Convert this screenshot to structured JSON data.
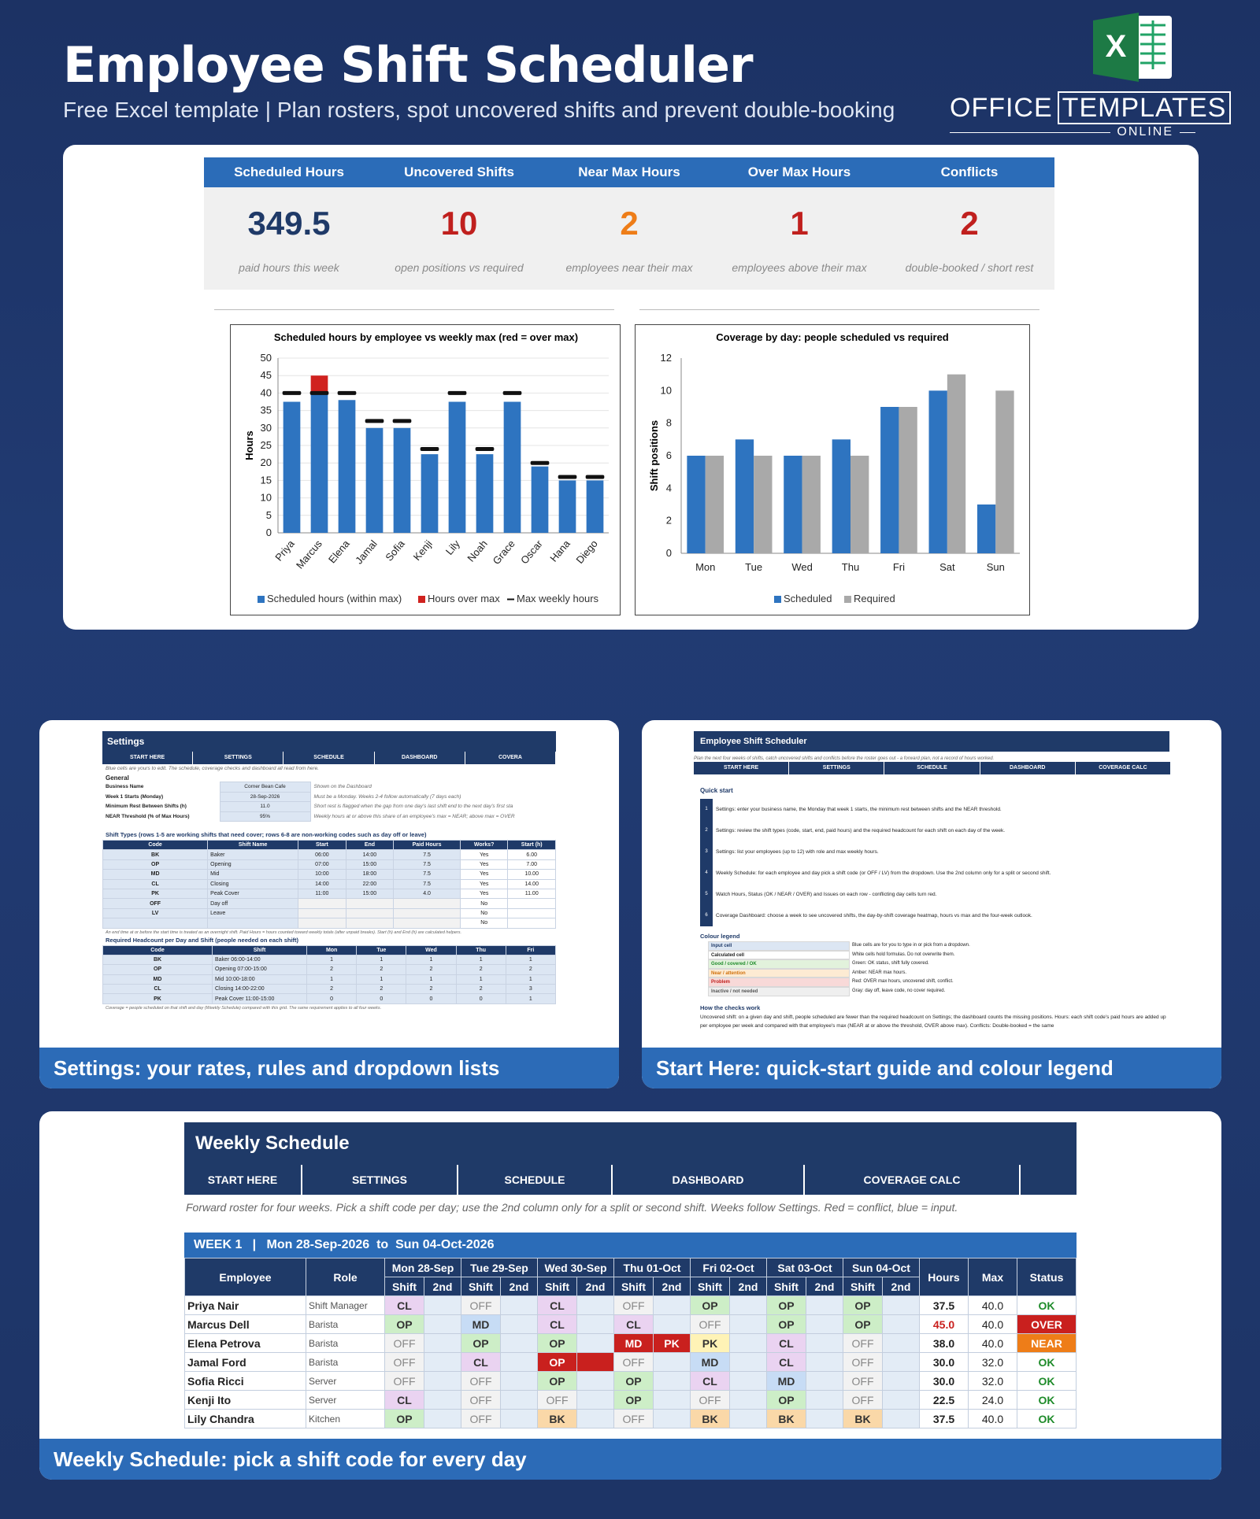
{
  "header": {
    "title": "Employee Shift Scheduler",
    "subtitle": "Free Excel template  |  Plan rosters, spot uncovered shifts and prevent double-booking",
    "logo_letter": "X",
    "brand_main": "OFFICE",
    "brand_box": "TEMPLATES",
    "brand_sub": "ONLINE"
  },
  "kpis": [
    {
      "label": "Scheduled Hours",
      "value": "349.5",
      "note": "paid hours this week",
      "color": "#1f3a68"
    },
    {
      "label": "Uncovered Shifts",
      "value": "10",
      "note": "open positions vs required",
      "color": "#c0201e"
    },
    {
      "label": "Near Max Hours",
      "value": "2",
      "note": "employees near their max",
      "color": "#ee7d18"
    },
    {
      "label": "Over Max Hours",
      "value": "1",
      "note": "employees above their max",
      "color": "#c0201e"
    },
    {
      "label": "Conflicts",
      "value": "2",
      "note": "double-booked / short rest",
      "color": "#c0201e"
    }
  ],
  "chart_data": [
    {
      "type": "bar",
      "title": "Scheduled hours by employee vs weekly max (red = over max)",
      "ylabel": "Hours",
      "ylim": [
        0,
        50
      ],
      "yticks": [
        0,
        5,
        10,
        15,
        20,
        25,
        30,
        35,
        40,
        45,
        50
      ],
      "categories": [
        "Priya",
        "Marcus",
        "Elena",
        "Jamal",
        "Sofia",
        "Kenji",
        "Lily",
        "Noah",
        "Grace",
        "Oscar",
        "Hana",
        "Diego"
      ],
      "series": [
        {
          "name": "Scheduled hours (within max)",
          "values": [
            37.5,
            40,
            38,
            30,
            30,
            22.5,
            37.5,
            22.5,
            37.5,
            19,
            15,
            15
          ],
          "color": "#2e74c0"
        },
        {
          "name": "Hours over max",
          "values": [
            0,
            5,
            0,
            0,
            0,
            0,
            0,
            0,
            0,
            0,
            0,
            0
          ],
          "color": "#d0221f"
        },
        {
          "name": "Max weekly hours",
          "values": [
            40,
            40,
            40,
            32,
            32,
            24,
            40,
            24,
            40,
            20,
            16,
            16
          ],
          "color": "#111111"
        }
      ]
    },
    {
      "type": "bar",
      "title": "Coverage by day: people scheduled vs required",
      "ylabel": "Shift positions",
      "ylim": [
        0,
        12
      ],
      "yticks": [
        0,
        2,
        4,
        6,
        8,
        10,
        12
      ],
      "categories": [
        "Mon",
        "Tue",
        "Wed",
        "Thu",
        "Fri",
        "Sat",
        "Sun"
      ],
      "series": [
        {
          "name": "Scheduled",
          "values": [
            6,
            7,
            6,
            7,
            9,
            10,
            3
          ],
          "color": "#2e74c0"
        },
        {
          "name": "Required",
          "values": [
            6,
            6,
            6,
            6,
            9,
            11,
            10
          ],
          "color": "#a9a9a9"
        }
      ]
    }
  ],
  "settings_shot": {
    "caption": "Settings: your rates, rules and dropdown lists",
    "title": "Settings",
    "nav": [
      "START HERE",
      "SETTINGS",
      "SCHEDULE",
      "DASHBOARD",
      "COVERA"
    ],
    "intro": "Blue cells are yours to edit. The schedule, coverage checks and dashboard all read from here.",
    "general_h": "General",
    "general": [
      [
        "Business Name",
        "Corner Bean Cafe",
        "Shown on the Dashboard"
      ],
      [
        "Week 1 Starts (Monday)",
        "28-Sep-2026",
        "Must be a Monday. Weeks 2-4 follow automatically (7 days each)"
      ],
      [
        "Minimum Rest Between Shifts (h)",
        "11.0",
        "Short rest is flagged when the gap from one day's last shift end to the next day's first sta"
      ],
      [
        "NEAR Threshold (% of Max Hours)",
        "95%",
        "Weekly hours at or above this share of an employee's max = NEAR; above max = OVER"
      ]
    ],
    "types_h": "Shift Types (rows 1-5 are working shifts that need cover; rows 6-8 are non-working codes such as day off or leave)",
    "types_cols": [
      "Code",
      "Shift Name",
      "Start",
      "End",
      "Paid Hours",
      "Works?",
      "Start (h)"
    ],
    "types": [
      [
        "BK",
        "Baker",
        "06:00",
        "14:00",
        "7.5",
        "Yes",
        "6.00"
      ],
      [
        "OP",
        "Opening",
        "07:00",
        "15:00",
        "7.5",
        "Yes",
        "7.00"
      ],
      [
        "MD",
        "Mid",
        "10:00",
        "18:00",
        "7.5",
        "Yes",
        "10.00"
      ],
      [
        "CL",
        "Closing",
        "14:00",
        "22:00",
        "7.5",
        "Yes",
        "14.00"
      ],
      [
        "PK",
        "Peak Cover",
        "11:00",
        "15:00",
        "4.0",
        "Yes",
        "11.00"
      ],
      [
        "OFF",
        "Day off",
        "",
        "",
        "",
        "No",
        ""
      ],
      [
        "LV",
        "Leave",
        "",
        "",
        "",
        "No",
        ""
      ],
      [
        "",
        "",
        "",
        "",
        "",
        "No",
        ""
      ]
    ],
    "types_note": "An end time at or before the start time is treated as an overnight shift. Paid Hours = hours counted toward weekly totals (after unpaid breaks). Start (h) and End (h) are calculated helpers.",
    "head_h": "Required Headcount per Day and Shift (people needed on each shift)",
    "head_cols": [
      "Code",
      "Shift",
      "Mon",
      "Tue",
      "Wed",
      "Thu",
      "Fri"
    ],
    "head": [
      [
        "BK",
        "Baker 06:00-14:00",
        "1",
        "1",
        "1",
        "1",
        "1"
      ],
      [
        "OP",
        "Opening 07:00-15:00",
        "2",
        "2",
        "2",
        "2",
        "2"
      ],
      [
        "MD",
        "Mid 10:00-18:00",
        "1",
        "1",
        "1",
        "1",
        "1"
      ],
      [
        "CL",
        "Closing 14:00-22:00",
        "2",
        "2",
        "2",
        "2",
        "3"
      ],
      [
        "PK",
        "Peak Cover 11:00-15:00",
        "0",
        "0",
        "0",
        "0",
        "1"
      ]
    ],
    "head_note": "Coverage = people scheduled on that shift and day (Weekly Schedule) compared with this grid. The same requirement applies to all four weeks."
  },
  "start_shot": {
    "caption": "Start Here: quick-start guide and colour legend",
    "title": "Employee Shift Scheduler",
    "intro": "Plan the next four weeks of shifts, catch uncovered shifts and conflicts before the roster goes out - a forward plan, not a record of hours worked.",
    "nav": [
      "START HERE",
      "SETTINGS",
      "SCHEDULE",
      "DASHBOARD",
      "COVERAGE CALC"
    ],
    "qs_h": "Quick start",
    "steps": [
      "Settings: enter your business name, the Monday that week 1 starts, the minimum rest between shifts and the NEAR threshold.",
      "Settings: review the shift types (code, start, end, paid hours) and the required headcount for each shift on each day of the week.",
      "Settings: list your employees (up to 12) with role and max weekly hours.",
      "Weekly Schedule: for each employee and day pick a shift code (or OFF / LV) from the dropdown. Use the 2nd column only for a split or second shift.",
      "Watch Hours, Status (OK / NEAR / OVER) and Issues on each row - conflicting day cells turn red.",
      "Coverage Dashboard: choose a week to see uncovered shifts, the day-by-shift coverage heatmap, hours vs max and the four-week outlook."
    ],
    "legend_h": "Colour legend",
    "legend": [
      [
        "Input cell",
        "Blue cells are for you to type in or pick from a dropdown.",
        "#dce6f3",
        "#1f3a68"
      ],
      [
        "Calculated cell",
        "White cells hold formulas. Do not overwrite them.",
        "#ffffff",
        "#222222"
      ],
      [
        "Good / covered / OK",
        "Green: OK status, shift fully covered.",
        "#e2f2dc",
        "#1e8b2a"
      ],
      [
        "Near / attention",
        "Amber: NEAR max hours.",
        "#fdebd3",
        "#d0700a"
      ],
      [
        "Problem",
        "Red: OVER max hours, uncovered shift, conflict.",
        "#f8d9d8",
        "#c0201e"
      ],
      [
        "Inactive / not needed",
        "Gray: day off, leave code, no cover required.",
        "#efefef",
        "#555555"
      ]
    ],
    "how_h": "How the checks work",
    "how": "Uncovered shift: on a given day and shift, people scheduled are fewer than the required headcount on Settings; the dashboard counts the missing positions. Hours: each shift code's paid hours are added up per employee per week and compared with that employee's max (NEAR at or above the threshold, OVER above max). Conflicts: Double-booked = the same"
  },
  "schedule_shot": {
    "caption": "Weekly Schedule: pick a shift code for every day",
    "title": "Weekly Schedule",
    "nav": [
      "START HERE",
      "SETTINGS",
      "SCHEDULE",
      "DASHBOARD",
      "COVERAGE CALC"
    ],
    "intro": "Forward roster for four weeks. Pick a shift code per day; use the 2nd column only for a split or second shift. Weeks follow Settings. Red = conflict, blue = input.",
    "week_label": "WEEK 1   |   Mon 28-Sep-2026  to  Sun 04-Oct-2026",
    "col_employee": "Employee",
    "col_role": "Role",
    "col_hours": "Hours",
    "col_max": "Max",
    "col_status": "Status",
    "sub_shift": "Shift",
    "sub_2nd": "2nd",
    "days": [
      "Mon 28-Sep",
      "Tue 29-Sep",
      "Wed 30-Sep",
      "Thu 01-Oct",
      "Fri 02-Oct",
      "Sat 03-Oct",
      "Sun 04-Oct"
    ],
    "rows": [
      {
        "name": "Priya Nair",
        "role": "Shift Manager",
        "cells": [
          [
            "CL",
            ""
          ],
          [
            "OFF",
            ""
          ],
          [
            "CL",
            ""
          ],
          [
            "OFF",
            ""
          ],
          [
            "OP",
            ""
          ],
          [
            "OP",
            ""
          ],
          [
            "OP",
            ""
          ]
        ],
        "conf": [],
        "hours": "37.5",
        "max": "40.0",
        "status": "OK"
      },
      {
        "name": "Marcus Dell",
        "role": "Barista",
        "cells": [
          [
            "OP",
            ""
          ],
          [
            "MD",
            ""
          ],
          [
            "CL",
            ""
          ],
          [
            "CL",
            ""
          ],
          [
            "OFF",
            ""
          ],
          [
            "OP",
            ""
          ],
          [
            "OP",
            ""
          ]
        ],
        "conf": [],
        "hours": "45.0",
        "max": "40.0",
        "status": "OVER"
      },
      {
        "name": "Elena Petrova",
        "role": "Barista",
        "cells": [
          [
            "OFF",
            ""
          ],
          [
            "OP",
            ""
          ],
          [
            "OP",
            ""
          ],
          [
            "MD",
            "PK"
          ],
          [
            "PK",
            ""
          ],
          [
            "CL",
            ""
          ],
          [
            "OFF",
            ""
          ]
        ],
        "conf": [
          3
        ],
        "hours": "38.0",
        "max": "40.0",
        "status": "NEAR"
      },
      {
        "name": "Jamal Ford",
        "role": "Barista",
        "cells": [
          [
            "OFF",
            ""
          ],
          [
            "CL",
            ""
          ],
          [
            "OP",
            ""
          ],
          [
            "OFF",
            ""
          ],
          [
            "MD",
            ""
          ],
          [
            "CL",
            ""
          ],
          [
            "OFF",
            ""
          ]
        ],
        "conf": [
          2
        ],
        "hours": "30.0",
        "max": "32.0",
        "status": "OK"
      },
      {
        "name": "Sofia Ricci",
        "role": "Server",
        "cells": [
          [
            "OFF",
            ""
          ],
          [
            "OFF",
            ""
          ],
          [
            "OP",
            ""
          ],
          [
            "OP",
            ""
          ],
          [
            "CL",
            ""
          ],
          [
            "MD",
            ""
          ],
          [
            "OFF",
            ""
          ]
        ],
        "conf": [],
        "hours": "30.0",
        "max": "32.0",
        "status": "OK"
      },
      {
        "name": "Kenji Ito",
        "role": "Server",
        "cells": [
          [
            "CL",
            ""
          ],
          [
            "OFF",
            ""
          ],
          [
            "OFF",
            ""
          ],
          [
            "OP",
            ""
          ],
          [
            "OFF",
            ""
          ],
          [
            "OP",
            ""
          ],
          [
            "OFF",
            ""
          ]
        ],
        "conf": [],
        "hours": "22.5",
        "max": "24.0",
        "status": "OK"
      },
      {
        "name": "Lily Chandra",
        "role": "Kitchen",
        "cells": [
          [
            "OP",
            ""
          ],
          [
            "OFF",
            ""
          ],
          [
            "BK",
            ""
          ],
          [
            "OFF",
            ""
          ],
          [
            "BK",
            ""
          ],
          [
            "BK",
            ""
          ],
          [
            "BK",
            ""
          ]
        ],
        "conf": [],
        "hours": "37.5",
        "max": "40.0",
        "status": "OK"
      }
    ]
  }
}
